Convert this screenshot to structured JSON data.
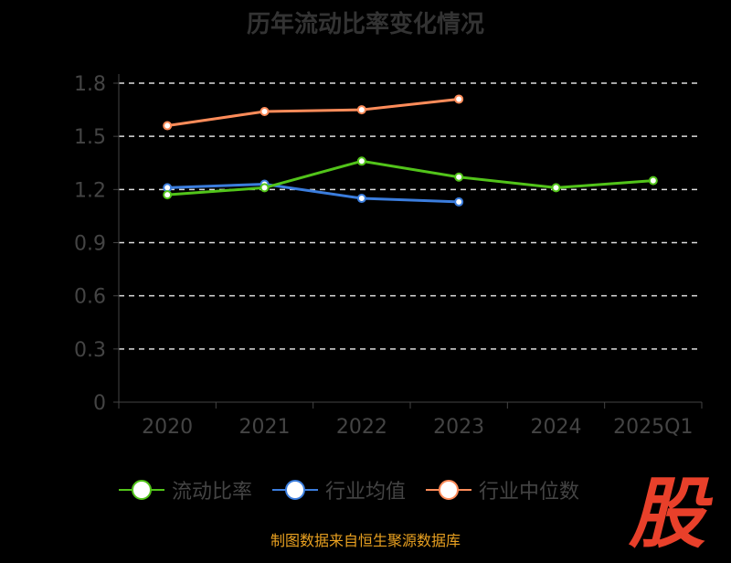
{
  "chart_data": {
    "type": "line",
    "title": "历年流动比率变化情况",
    "categories": [
      "2020",
      "2021",
      "2022",
      "2023",
      "2024",
      "2025Q1"
    ],
    "ylim": [
      0,
      1.8
    ],
    "yticks": [
      "0",
      "0.3",
      "0.6",
      "0.9",
      "1.2",
      "1.5",
      "1.8"
    ],
    "grid": true,
    "legend_position": "bottom",
    "series": [
      {
        "name": "流动比率",
        "color": "#52c41a",
        "values": [
          1.17,
          1.21,
          1.36,
          1.27,
          1.21,
          1.25
        ]
      },
      {
        "name": "行业均值",
        "color": "#3b7ddd",
        "values": [
          1.21,
          1.23,
          1.15,
          1.13,
          null,
          null
        ]
      },
      {
        "name": "行业中位数",
        "color": "#ff8c5a",
        "values": [
          1.56,
          1.64,
          1.65,
          1.71,
          null,
          null
        ]
      }
    ]
  },
  "footer": "制图数据来自恒生聚源数据库",
  "logo": "股"
}
